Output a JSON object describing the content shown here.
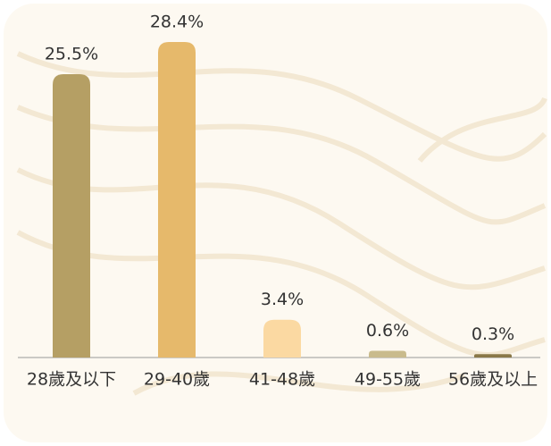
{
  "chart_data": {
    "type": "bar",
    "categories": [
      "28歲及以下",
      "29-40歲",
      "41-48歲",
      "49-55歲",
      "56歲及以上"
    ],
    "values": [
      25.5,
      28.4,
      3.4,
      0.6,
      0.3
    ],
    "value_labels": [
      "25.5%",
      "28.4%",
      "3.4%",
      "0.6%",
      "0.3%"
    ],
    "colors": [
      "#b59f64",
      "#e6b96b",
      "#fbd9a2",
      "#c9bb8c",
      "#8a7848"
    ]
  }
}
